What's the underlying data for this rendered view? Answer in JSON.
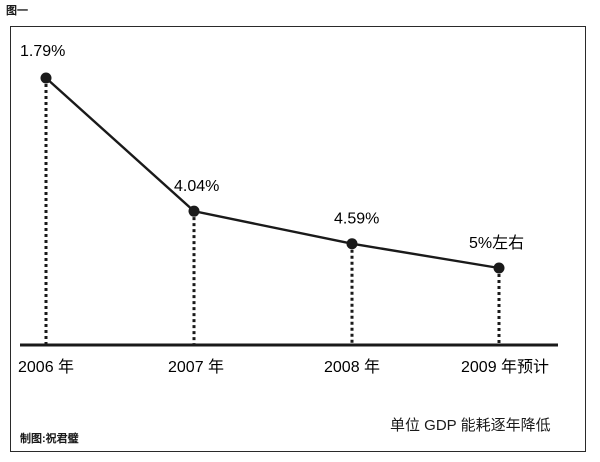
{
  "figure_tag": "图一",
  "caption": "单位 GDP 能耗逐年降低",
  "credit": "制图:祝君璧",
  "chart_data": {
    "type": "line",
    "title": "",
    "xlabel": "",
    "ylabel": "",
    "categories": [
      "2006 年",
      "2007 年",
      "2008 年",
      "2009 年预计"
    ],
    "series": [
      {
        "values": [
          1.79,
          4.04,
          4.59,
          5
        ],
        "labels": [
          "1.79%",
          "4.04%",
          "4.59%",
          "5%左右"
        ]
      }
    ],
    "ylim": [
      0,
      6
    ],
    "grid": false,
    "legend": "none",
    "colors": {
      "line": "#1a1a1a",
      "marker": "#1a1a1a",
      "drop": "#1a1a1a"
    }
  }
}
